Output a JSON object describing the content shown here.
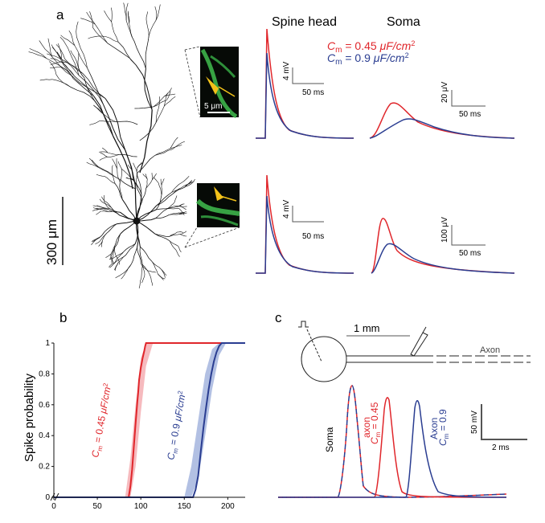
{
  "panels": {
    "a": {
      "letter": "a",
      "col_titles": [
        "Spine head",
        "Soma"
      ],
      "legend": [
        {
          "sym": "C",
          "sub": "m",
          "rest": " = 0.45 ",
          "unit": "μF/cm",
          "sup": "2",
          "color": "#e0262b"
        },
        {
          "sym": "C",
          "sub": "m",
          "rest": " = 0.9 ",
          "unit": "μF/cm",
          "sup": "2",
          "color": "#2a3d91"
        }
      ],
      "scale_bars": {
        "spine_v": "4 mV",
        "spine_t": "50 ms",
        "soma_top_v": "20 μV",
        "soma_bot_v": "100 μV",
        "soma_t": "50 ms",
        "image_scale": "5 μm",
        "morph_scale": "300 μm"
      }
    },
    "b": {
      "letter": "b"
    },
    "c": {
      "letter": "c",
      "length_label": "1 mm",
      "axon_label": "Axon",
      "volt_scale": "50 mV",
      "time_scale": "2 ms",
      "trace_labels": {
        "soma": "Soma",
        "axon1_name": "axon",
        "axon1_val": " = 0.45",
        "axon2_name": "Axon",
        "axon2_val": " = 0.9",
        "cm_sym": "C",
        "cm_sub": "m"
      }
    }
  },
  "colors": {
    "red": "#e0262b",
    "blue": "#2a3d91",
    "red_band": "#f4a9ae",
    "blue_band": "#9fb0dc",
    "image_green": "#3db34a"
  },
  "chart_data": [
    {
      "type": "line",
      "title": "",
      "xlabel": "",
      "ylabel": "Spike probability",
      "xlim": [
        0,
        220
      ],
      "ylim": [
        0,
        1
      ],
      "xticks": [
        0,
        50,
        100,
        150,
        200
      ],
      "yticks": [
        0,
        0.2,
        0.4,
        0.6,
        0.8,
        1
      ],
      "series": [
        {
          "name": "Cm = 0.45 μF/cm2",
          "color": "#e0262b",
          "x": [
            0,
            86,
            88,
            90,
            92,
            94,
            96,
            97,
            98,
            100,
            102,
            104,
            105,
            106,
            220
          ],
          "y": [
            0,
            0,
            0.07,
            0.18,
            0.33,
            0.48,
            0.62,
            0.68,
            0.76,
            0.84,
            0.9,
            0.95,
            0.98,
            1,
            1
          ],
          "band_x": [
            82,
            88,
            94,
            100,
            106,
            114
          ],
          "band_low": [
            0,
            0,
            0.2,
            0.55,
            0.85,
            1
          ],
          "band_high": [
            0,
            0.25,
            0.6,
            0.9,
            1,
            1
          ]
        },
        {
          "name": "Cm = 0.9 μF/cm2",
          "color": "#2a3d91",
          "x": [
            0,
            160,
            163,
            166,
            169,
            172,
            175,
            178,
            181,
            184,
            187,
            190,
            193,
            220
          ],
          "y": [
            0,
            0,
            0.05,
            0.14,
            0.3,
            0.45,
            0.58,
            0.7,
            0.8,
            0.88,
            0.94,
            0.98,
            1,
            1
          ],
          "band_x": [
            150,
            158,
            166,
            174,
            182,
            190,
            198
          ],
          "band_low": [
            0,
            0,
            0.12,
            0.4,
            0.7,
            0.92,
            1
          ],
          "band_high": [
            0,
            0.2,
            0.5,
            0.8,
            0.96,
            1,
            1
          ]
        }
      ]
    }
  ]
}
